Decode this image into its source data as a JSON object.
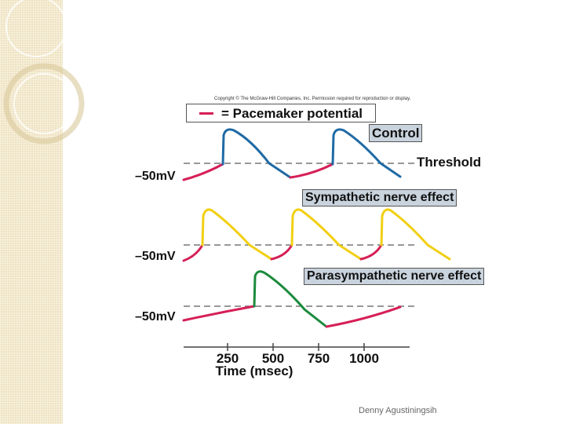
{
  "copyright": "Copyright © The McGraw-Hill Companies, Inc. Permission required for reproduction or display.",
  "legend": {
    "symbol": "—",
    "label": "= Pacemaker potential"
  },
  "panels": {
    "control": {
      "title": "Control",
      "threshold_label": "Threshold",
      "baseline_label": "–50mV"
    },
    "sympathetic": {
      "title": "Sympathetic nerve effect",
      "baseline_label": "–50mV"
    },
    "parasympathetic": {
      "title": "Parasympathetic nerve effect",
      "baseline_label": "–50mV"
    }
  },
  "axis": {
    "label": "Time (msec)",
    "ticks": [
      "250",
      "500",
      "750",
      "1000"
    ]
  },
  "colors": {
    "pacemaker": "#d61f57",
    "control": "#1f6aa5",
    "sympathetic": "#f2cf12",
    "parasympathetic": "#1b8a3c",
    "threshold_line": "#777777"
  },
  "footer": "Denny Agustiningsih"
}
